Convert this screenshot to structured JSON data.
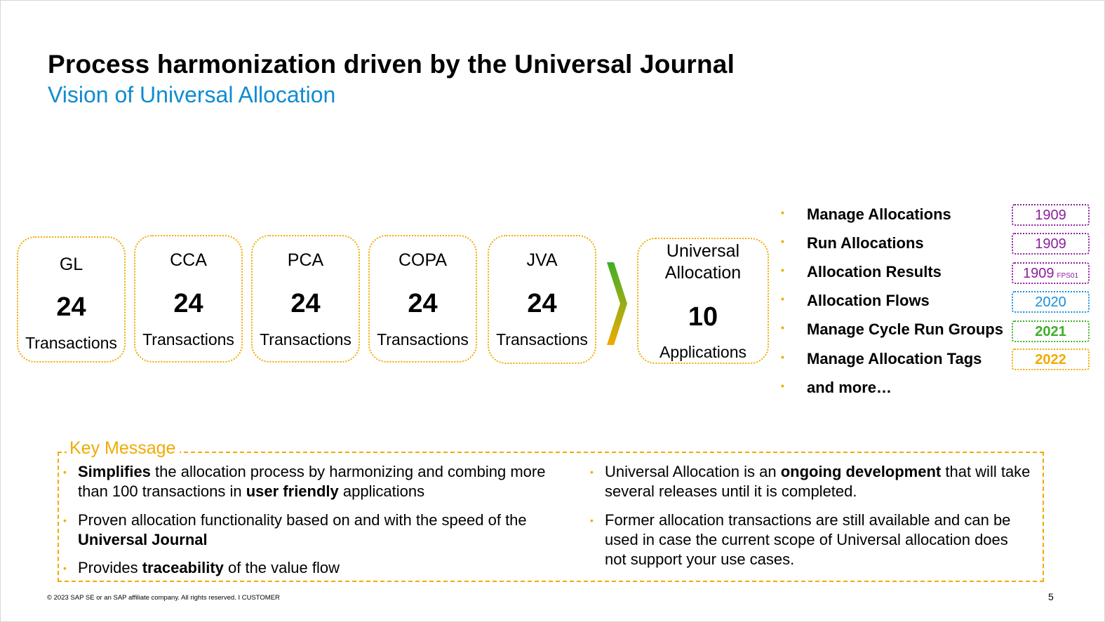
{
  "slide": {
    "title": "Process harmonization driven by the Universal Journal",
    "subtitle": "Vision of Universal Allocation"
  },
  "transaction_boxes": [
    {
      "label": "GL",
      "count": "24",
      "unit": "Transactions"
    },
    {
      "label": "CCA",
      "count": "24",
      "unit": "Transactions"
    },
    {
      "label": "PCA",
      "count": "24",
      "unit": "Transactions"
    },
    {
      "label": "COPA",
      "count": "24",
      "unit": "Transactions"
    },
    {
      "label": "JVA",
      "count": "24",
      "unit": "Transactions"
    }
  ],
  "universal_allocation": {
    "label_line1": "Universal",
    "label_line2": "Allocation",
    "count": "10",
    "unit": "Applications"
  },
  "apps": [
    {
      "name": "Manage Allocations",
      "release": "1909",
      "release_sub": "",
      "color": "#8c1f9e"
    },
    {
      "name": "Run Allocations",
      "release": "1909",
      "release_sub": "",
      "color": "#8c1f9e"
    },
    {
      "name": "Allocation Results",
      "release": "1909",
      "release_sub": "FPS01",
      "color": "#8c1f9e"
    },
    {
      "name": "Allocation Flows",
      "release": "2020",
      "release_sub": "",
      "color": "#1a8fd6"
    },
    {
      "name": "Manage Cycle Run Groups",
      "release": "2021",
      "release_sub": "",
      "color": "#3fae29"
    },
    {
      "name": "Manage Allocation Tags",
      "release": "2022",
      "release_sub": "",
      "color": "#f0ab00"
    },
    {
      "name": "and more…"
    }
  ],
  "bullet_symbol": "•",
  "key_message": {
    "title": "Key Message",
    "left": [
      {
        "b1": "Simplifies",
        "t1": " the allocation process by harmonizing and combing more than 100 transactions in ",
        "b2": "user friendly",
        "t2": " applications"
      },
      {
        "t1": "Proven allocation functionality based on and with the speed of the ",
        "b1": "Universal Journal"
      },
      {
        "t1": "Provides ",
        "b1": "traceability",
        "t2": " of the value flow"
      }
    ],
    "right": [
      {
        "t1": "Universal Allocation is an ",
        "b1": "ongoing development",
        "t2": " that will take several releases until it is completed."
      },
      {
        "t1": "Former allocation transactions are still available and can be used in case the current scope of Universal allocation does not support your use cases."
      }
    ]
  },
  "footer": {
    "copyright": "© 2023 SAP SE or an SAP affiliate company. All rights reserved.  I   CUSTOMER",
    "page_number": "5"
  },
  "colors": {
    "accent_orange": "#f0ab00",
    "subtitle_blue": "#118bd1",
    "arrow_green": "#3fae29",
    "arrow_yellow": "#f0ab00"
  }
}
